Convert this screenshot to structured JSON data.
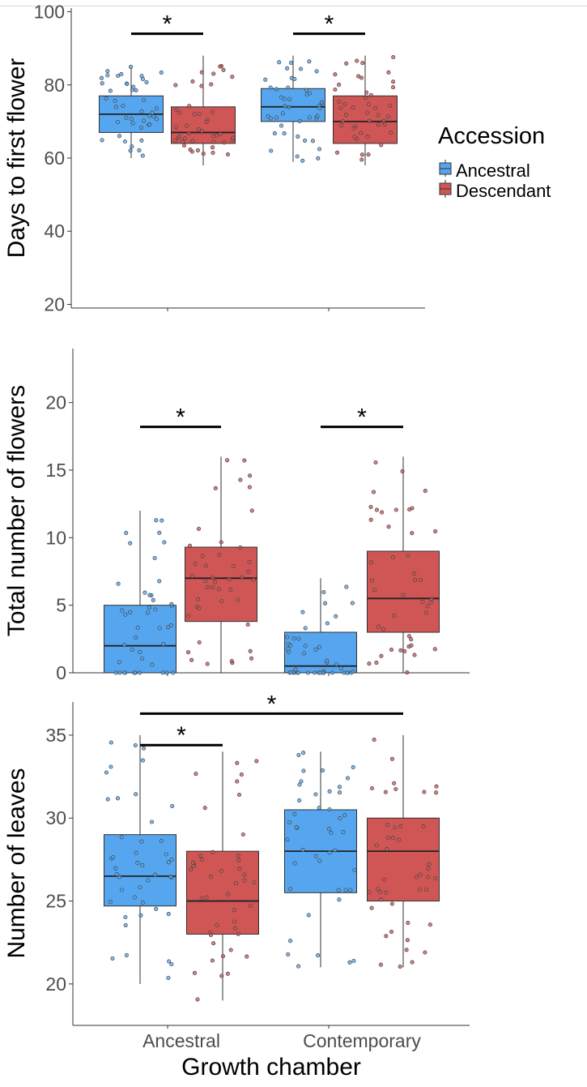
{
  "colors": {
    "ancestral": "#56a6ef",
    "descendant": "#d05656",
    "outline": "#303030",
    "axis_text": "#4d4d4d"
  },
  "legend": {
    "title": "Accession",
    "entries": [
      "Ancestral",
      "Descendant"
    ]
  },
  "x_axis": {
    "title": "Growth chamber",
    "tick_labels": [
      "Ancestral",
      "Contemporary"
    ]
  },
  "chart_data": [
    {
      "type": "box",
      "ylabel": "Days to first flower",
      "ylim": [
        19,
        101
      ],
      "yticks": [
        20,
        40,
        60,
        80,
        100
      ],
      "categories": [
        "Ancestral",
        "Contemporary"
      ],
      "series": [
        {
          "name": "Ancestral",
          "color": "#56a6ef",
          "boxes": [
            {
              "whislo": 60,
              "q1": 67,
              "med": 72,
              "q3": 77,
              "whishi": 85
            },
            {
              "whislo": 59,
              "q1": 70,
              "med": 74,
              "q3": 79,
              "whishi": 88
            }
          ]
        },
        {
          "name": "Descendant",
          "color": "#d05656",
          "boxes": [
            {
              "whislo": 58,
              "q1": 64,
              "med": 67,
              "q3": 74,
              "whishi": 88
            },
            {
              "whislo": 58,
              "q1": 64,
              "med": 70,
              "q3": 77,
              "whishi": 88
            }
          ]
        }
      ],
      "significance": [
        {
          "label": "*",
          "from": {
            "category": 0,
            "series": 0
          },
          "to": {
            "category": 0,
            "series": 1
          },
          "y": 94
        },
        {
          "label": "*",
          "from": {
            "category": 1,
            "series": 0
          },
          "to": {
            "category": 1,
            "series": 1
          },
          "y": 94
        }
      ]
    },
    {
      "type": "box",
      "ylabel": "Total number of flowers",
      "ylim": [
        0,
        24
      ],
      "yticks": [
        0,
        5,
        10,
        15,
        20
      ],
      "categories": [
        "Ancestral",
        "Contemporary"
      ],
      "series": [
        {
          "name": "Ancestral",
          "color": "#56a6ef",
          "boxes": [
            {
              "whislo": 0,
              "q1": 0,
              "med": 2,
              "q3": 5,
              "whishi": 12
            },
            {
              "whislo": 0,
              "q1": 0,
              "med": 0.5,
              "q3": 3,
              "whishi": 7
            }
          ]
        },
        {
          "name": "Descendant",
          "color": "#d05656",
          "boxes": [
            {
              "whislo": 0,
              "q1": 3.8,
              "med": 7,
              "q3": 9.3,
              "whishi": 16
            },
            {
              "whislo": 0,
              "q1": 3,
              "med": 5.5,
              "q3": 9,
              "whishi": 16
            }
          ]
        }
      ],
      "significance": [
        {
          "label": "*",
          "from": {
            "category": 0,
            "series": 0
          },
          "to": {
            "category": 0,
            "series": 1
          },
          "y": 18.2
        },
        {
          "label": "*",
          "from": {
            "category": 1,
            "series": 0
          },
          "to": {
            "category": 1,
            "series": 1
          },
          "y": 18.2
        }
      ]
    },
    {
      "type": "box",
      "ylabel": "Number of leaves",
      "ylim": [
        17.5,
        37
      ],
      "yticks": [
        20,
        25,
        30,
        35
      ],
      "categories": [
        "Ancestral",
        "Contemporary"
      ],
      "series": [
        {
          "name": "Ancestral",
          "color": "#56a6ef",
          "boxes": [
            {
              "whislo": 20,
              "q1": 24.7,
              "med": 26.5,
              "q3": 29,
              "whishi": 35
            },
            {
              "whislo": 21,
              "q1": 25.5,
              "med": 28,
              "q3": 30.5,
              "whishi": 34
            }
          ]
        },
        {
          "name": "Descendant",
          "color": "#d05656",
          "boxes": [
            {
              "whislo": 19,
              "q1": 23,
              "med": 25,
              "q3": 28,
              "whishi": 34
            },
            {
              "whislo": 21,
              "q1": 25,
              "med": 28,
              "q3": 30,
              "whishi": 35
            }
          ]
        }
      ],
      "significance": [
        {
          "label": "*",
          "from": {
            "category": 0,
            "series": 0
          },
          "to": {
            "category": 1,
            "series": 1
          },
          "y": 36.3
        },
        {
          "label": "*",
          "from": {
            "category": 0,
            "series": 0
          },
          "to": {
            "category": 0,
            "series": 1
          },
          "y": 34.4
        }
      ]
    }
  ]
}
